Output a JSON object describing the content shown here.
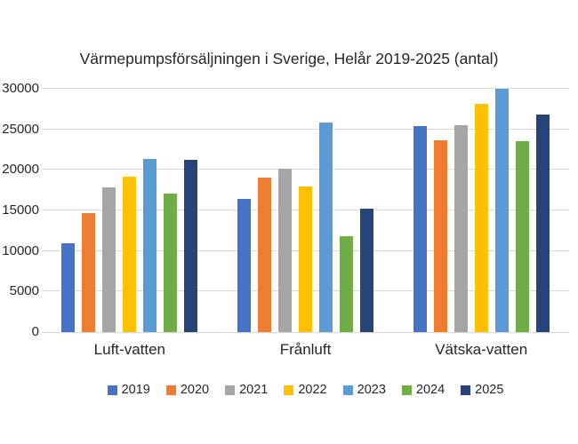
{
  "title": "Värmepumpsförsäljningen i Sverige, Helår 2019-2025 (antal)",
  "chart_data": {
    "type": "bar",
    "title": "Värmepumpsförsäljningen i Sverige, Helår 2019-2025 (antal)",
    "categories": [
      "Luft-vatten",
      "Frånluft",
      "Vätska-vatten"
    ],
    "series": [
      {
        "name": "2019",
        "color": "#4472C4",
        "values": [
          11000,
          16400,
          25400
        ]
      },
      {
        "name": "2020",
        "color": "#ED7D31",
        "values": [
          14700,
          19000,
          23700
        ]
      },
      {
        "name": "2021",
        "color": "#A5A5A5",
        "values": [
          17800,
          20100,
          25500
        ]
      },
      {
        "name": "2022",
        "color": "#FFC000",
        "values": [
          19200,
          18000,
          28100
        ]
      },
      {
        "name": "2023",
        "color": "#5B9BD5",
        "values": [
          21300,
          25800,
          30000
        ]
      },
      {
        "name": "2024",
        "color": "#70AD47",
        "values": [
          17100,
          11800,
          23500
        ]
      },
      {
        "name": "2025",
        "color": "#264478",
        "values": [
          21200,
          15200,
          26800
        ]
      }
    ],
    "xlabel": "",
    "ylabel": "",
    "ylim": [
      0,
      30000
    ],
    "yticks": [
      0,
      5000,
      10000,
      15000,
      20000,
      25000,
      30000
    ],
    "grid": true,
    "legend_position": "bottom"
  },
  "colors": {
    "background": "#FFFFFF",
    "gridline": "#D9D9D9",
    "text": "#262626"
  }
}
